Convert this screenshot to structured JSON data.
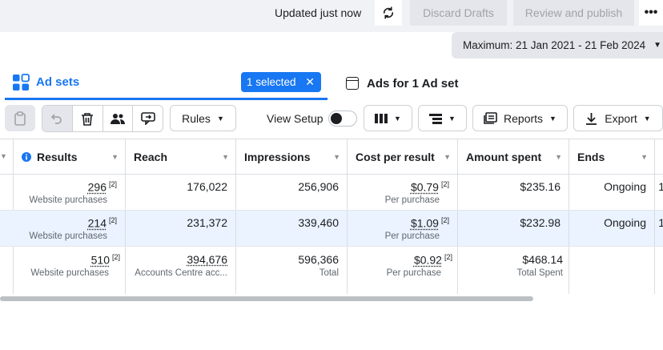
{
  "topbar": {
    "updated": "Updated just now",
    "discard": "Discard Drafts",
    "review": "Review and publish",
    "more": "•••"
  },
  "daterange": "Maximum: 21 Jan 2021 - 21 Feb 2024",
  "tabs": {
    "adsets": "Ad sets",
    "selected": "1 selected",
    "ads": "Ads for 1 Ad set"
  },
  "toolbar": {
    "rules": "Rules",
    "view_setup": "View Setup",
    "reports": "Reports",
    "export": "Export"
  },
  "table": {
    "headers": [
      "Results",
      "Reach",
      "Impressions",
      "Cost per result",
      "Amount spent",
      "Ends"
    ],
    "rows": [
      {
        "results": "296",
        "results_sub": "Website purchases",
        "reach": "176,022",
        "impressions": "256,906",
        "cpr": "$0.79",
        "cpr_sub": "Per purchase",
        "spent": "$235.16",
        "ends": "Ongoing",
        "edge": "1"
      },
      {
        "results": "214",
        "results_sub": "Website purchases",
        "reach": "231,372",
        "impressions": "339,460",
        "cpr": "$1.09",
        "cpr_sub": "Per purchase",
        "spent": "$232.98",
        "ends": "Ongoing",
        "edge": "1"
      }
    ],
    "total": {
      "results": "510",
      "results_sub": "Website purchases",
      "reach": "394,676",
      "reach_sub": "Accounts Centre acc...",
      "impressions": "596,366",
      "impressions_sub": "Total",
      "cpr": "$0.92",
      "cpr_sub": "Per purchase",
      "spent": "$468.14",
      "spent_sub": "Total Spent"
    },
    "footnote": "[2]"
  },
  "colors": {
    "accent": "#1877f2",
    "selected_row": "#eaf3ff"
  }
}
